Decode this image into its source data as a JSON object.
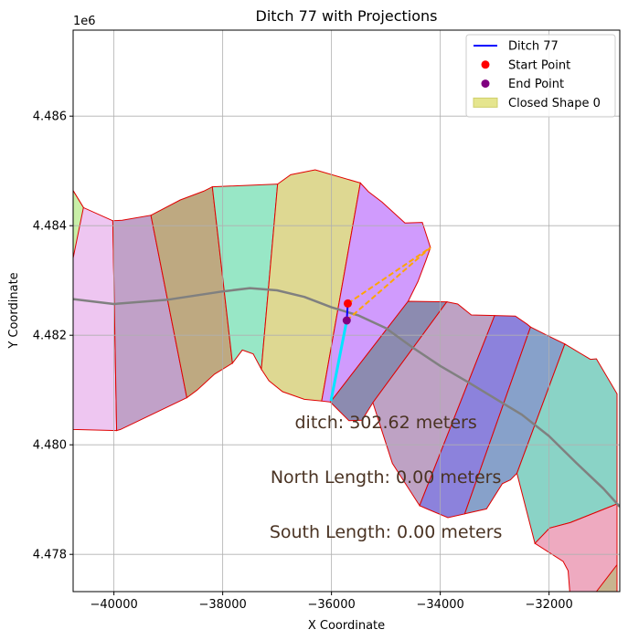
{
  "chart_data": {
    "type": "line",
    "title": "Ditch 77 with Projections",
    "xlabel": "X Coordinate",
    "ylabel": "Y Coordinate",
    "y_offset_label": "1e6",
    "xlim": [
      -40750,
      -30700
    ],
    "ylim": [
      4477320,
      4487570
    ],
    "x_ticks": [
      -40000,
      -38000,
      -36000,
      -34000,
      -32000
    ],
    "x_tick_labels": [
      "−40000",
      "−38000",
      "−36000",
      "−34000",
      "−32000"
    ],
    "y_ticks": [
      4478000,
      4480000,
      4482000,
      4484000,
      4486000
    ],
    "y_tick_labels": [
      "4.478",
      "4.480",
      "4.482",
      "4.484",
      "4.486"
    ],
    "grid": true,
    "legend_position": "top-right",
    "legend": [
      {
        "label": "Ditch 77",
        "kind": "line",
        "color": "#0000ff"
      },
      {
        "label": "Start Point",
        "kind": "point",
        "color": "#ff0000"
      },
      {
        "label": "End Point",
        "kind": "point",
        "color": "#800080"
      },
      {
        "label": "Closed Shape 0",
        "kind": "patch",
        "color": "#e5e58e"
      }
    ],
    "shapes": [
      {
        "color": "#eec6f1",
        "points": [
          [
            -40750,
            4484640
          ],
          [
            -40560,
            4484330
          ],
          [
            -40020,
            4484090
          ],
          [
            -39950,
            4480260
          ],
          [
            -40750,
            4480280
          ]
        ]
      },
      {
        "color": "#c1a1c8",
        "points": [
          [
            -40020,
            4484090
          ],
          [
            -39850,
            4484100
          ],
          [
            -39320,
            4484190
          ],
          [
            -38660,
            4480860
          ],
          [
            -39880,
            4480280
          ],
          [
            -39950,
            4480260
          ]
        ]
      },
      {
        "color": "#bea981",
        "points": [
          [
            -39320,
            4484190
          ],
          [
            -38780,
            4484470
          ],
          [
            -38350,
            4484630
          ],
          [
            -38190,
            4484710
          ],
          [
            -37820,
            4481490
          ],
          [
            -38150,
            4481290
          ],
          [
            -38470,
            4481000
          ],
          [
            -38660,
            4480860
          ]
        ]
      },
      {
        "color": "#98e7c6",
        "points": [
          [
            -38190,
            4484710
          ],
          [
            -36990,
            4484760
          ],
          [
            -37290,
            4481380
          ],
          [
            -37440,
            4481660
          ],
          [
            -37640,
            4481730
          ],
          [
            -37820,
            4481490
          ]
        ]
      },
      {
        "color": "#ded892",
        "points": [
          [
            -36990,
            4484760
          ],
          [
            -36750,
            4484930
          ],
          [
            -36300,
            4485020
          ],
          [
            -35470,
            4484780
          ],
          [
            -36180,
            4480800
          ],
          [
            -36500,
            4480830
          ],
          [
            -36900,
            4480970
          ],
          [
            -37150,
            4481170
          ],
          [
            -37290,
            4481380
          ]
        ]
      },
      {
        "color": "#d09bfd",
        "points": [
          [
            -35470,
            4484780
          ],
          [
            -35320,
            4484620
          ],
          [
            -35070,
            4484430
          ],
          [
            -34650,
            4484050
          ],
          [
            -34330,
            4484060
          ],
          [
            -34180,
            4483600
          ],
          [
            -34270,
            4483350
          ],
          [
            -34410,
            4482980
          ],
          [
            -34590,
            4482620
          ],
          [
            -36020,
            4480780
          ],
          [
            -36180,
            4480800
          ]
        ]
      },
      {
        "color": "#8c8bb0",
        "points": [
          [
            -34590,
            4482620
          ],
          [
            -33880,
            4482610
          ],
          [
            -35240,
            4480770
          ],
          [
            -35440,
            4480450
          ],
          [
            -35680,
            4480440
          ],
          [
            -36020,
            4480780
          ]
        ]
      },
      {
        "color": "#bea2c4",
        "points": [
          [
            -33880,
            4482610
          ],
          [
            -33680,
            4482570
          ],
          [
            -33430,
            4482370
          ],
          [
            -33000,
            4482360
          ],
          [
            -34380,
            4478890
          ],
          [
            -34600,
            4479230
          ],
          [
            -34880,
            4479660
          ],
          [
            -35040,
            4480150
          ],
          [
            -35240,
            4480770
          ]
        ]
      },
      {
        "color": "#8c82dc",
        "points": [
          [
            -33000,
            4482360
          ],
          [
            -32620,
            4482350
          ],
          [
            -32400,
            4482200
          ],
          [
            -32340,
            4482150
          ],
          [
            -33550,
            4478740
          ],
          [
            -33860,
            4478670
          ],
          [
            -34220,
            4478820
          ],
          [
            -34380,
            4478890
          ]
        ]
      },
      {
        "color": "#87a1ca",
        "points": [
          [
            -32340,
            4482150
          ],
          [
            -32020,
            4481990
          ],
          [
            -31710,
            4481840
          ],
          [
            -32590,
            4479480
          ],
          [
            -32710,
            4479360
          ],
          [
            -32860,
            4479290
          ],
          [
            -33150,
            4478830
          ],
          [
            -33550,
            4478740
          ]
        ]
      },
      {
        "color": "#8ad3c6",
        "points": [
          [
            -31710,
            4481840
          ],
          [
            -31240,
            4481560
          ],
          [
            -31130,
            4481570
          ],
          [
            -30750,
            4480930
          ],
          [
            -30750,
            4478920
          ],
          [
            -31610,
            4478580
          ],
          [
            -31990,
            4478480
          ],
          [
            -32260,
            4478200
          ],
          [
            -32590,
            4479480
          ]
        ]
      },
      {
        "color": "#eeaac0",
        "points": [
          [
            -30750,
            4478920
          ],
          [
            -31610,
            4478580
          ],
          [
            -31990,
            4478480
          ],
          [
            -32260,
            4478200
          ],
          [
            -31740,
            4477870
          ],
          [
            -31650,
            4477700
          ],
          [
            -31620,
            4477320
          ],
          [
            -30750,
            4477320
          ]
        ]
      },
      {
        "color": "#c8b48f",
        "points": [
          [
            -31130,
            4477320
          ],
          [
            -30750,
            4477810
          ],
          [
            -30750,
            4477320
          ]
        ]
      }
    ],
    "corner_shape": {
      "color": "#c9efa8",
      "points": [
        [
          -40750,
          4484640
        ],
        [
          -40560,
          4484330
        ],
        [
          -40750,
          4483410
        ]
      ]
    },
    "centerline": {
      "color": "#808080",
      "points": [
        [
          -40750,
          4482660
        ],
        [
          -40000,
          4482570
        ],
        [
          -39000,
          4482650
        ],
        [
          -38000,
          4482800
        ],
        [
          -37500,
          4482860
        ],
        [
          -37000,
          4482820
        ],
        [
          -36500,
          4482700
        ],
        [
          -36000,
          4482510
        ],
        [
          -35500,
          4482360
        ],
        [
          -35000,
          4482130
        ],
        [
          -34500,
          4481770
        ],
        [
          -34000,
          4481440
        ],
        [
          -33500,
          4481150
        ],
        [
          -33000,
          4480850
        ],
        [
          -32500,
          4480550
        ],
        [
          -32000,
          4480160
        ],
        [
          -31500,
          4479670
        ],
        [
          -31000,
          4479200
        ],
        [
          -30700,
          4478870
        ]
      ]
    },
    "ditch_line": {
      "color": "#0000ff",
      "points": [
        [
          -35700,
          4482580
        ],
        [
          -35720,
          4482270
        ]
      ]
    },
    "start_point": {
      "x": -35700,
      "y": 4482580,
      "color": "#ff0000"
    },
    "end_point": {
      "x": -35720,
      "y": 4482270,
      "color": "#800080"
    },
    "projection_cyan": {
      "color": "#00e5ff",
      "points": [
        [
          -35720,
          4482270
        ],
        [
          -36010,
          4480800
        ]
      ]
    },
    "projection_orange": {
      "color": "#ffa500",
      "points": [
        [
          [
            -35700,
            4482580
          ],
          [
            -34180,
            4483600
          ]
        ],
        [
          [
            -35720,
            4482270
          ],
          [
            -34180,
            4483600
          ]
        ]
      ]
    },
    "annotations": [
      {
        "text": "ditch: 302.62 meters",
        "x": -35000,
        "y": 4480300
      },
      {
        "text": "North Length: 0.00 meters",
        "x": -35000,
        "y": 4479300
      },
      {
        "text": "South Length: 0.00 meters",
        "x": -35000,
        "y": 4478300
      }
    ]
  }
}
